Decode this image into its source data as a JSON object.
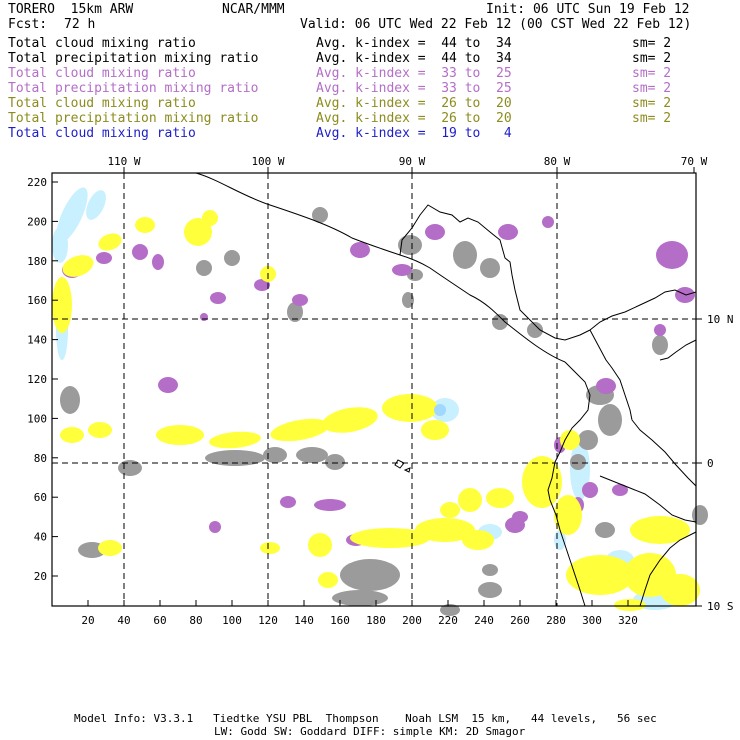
{
  "header": {
    "model": "TORERO  15km ARW",
    "center": "NCAR/MMM",
    "init": "Init: 06 UTC Sun 19 Feb 12",
    "fcst_label": "Fcst:",
    "fcst_value": "72 h",
    "valid": "Valid: 06 UTC Wed 22 Feb 12 (00 CST Wed 22 Feb 12)"
  },
  "legend": [
    {
      "field": "Total cloud mixing ratio",
      "index": "Avg. k-index =  44 to  34",
      "sm": "sm= 2",
      "color": "#000000"
    },
    {
      "field": "Total precipitation mixing ratio",
      "index": "Avg. k-index =  44 to  34",
      "sm": "sm= 2",
      "color": "#000000"
    },
    {
      "field": "Total cloud mixing ratio",
      "index": "Avg. k-index =  33 to  25",
      "sm": "sm= 2",
      "color": "#b46ec8"
    },
    {
      "field": "Total precipitation mixing ratio",
      "index": "Avg. k-index =  33 to  25",
      "sm": "sm= 2",
      "color": "#b46ec8"
    },
    {
      "field": "Total cloud mixing ratio",
      "index": "Avg. k-index =  26 to  20",
      "sm": "sm= 2",
      "color": "#8c8c1e"
    },
    {
      "field": "Total precipitation mixing ratio",
      "index": "Avg. k-index =  26 to  20",
      "sm": "sm= 2",
      "color": "#8c8c1e"
    },
    {
      "field": "Total cloud mixing ratio",
      "index": "Avg. k-index =  19 to   4",
      "sm": "",
      "color": "#1e1ec8"
    }
  ],
  "map": {
    "lon_labels": [
      "110 W",
      "100 W",
      "90 W",
      "80 W",
      "70 W"
    ],
    "lat_labels": [
      "10 N",
      "0",
      "10 S"
    ],
    "y_ticks": [
      "220",
      "200",
      "180",
      "160",
      "140",
      "120",
      "100",
      "80",
      "60",
      "40",
      "20"
    ],
    "x_ticks": [
      "20",
      "40",
      "60",
      "80",
      "100",
      "120",
      "140",
      "160",
      "180",
      "200",
      "220",
      "240",
      "260",
      "280",
      "300",
      "320"
    ],
    "colors": {
      "gray": "#9b9b9b",
      "purple": "#b46ec8",
      "yellow": "#ffff3c",
      "cyan": "#c8f0ff",
      "coast": "#000000"
    }
  },
  "footer": {
    "line1": "Model Info: V3.3.1   Tiedtke YSU PBL  Thompson    Noah LSM  15 km,   44 levels,   56 sec",
    "line2": "LW: Godd SW: Goddard DIFF: simple KM: 2D Smagor"
  }
}
